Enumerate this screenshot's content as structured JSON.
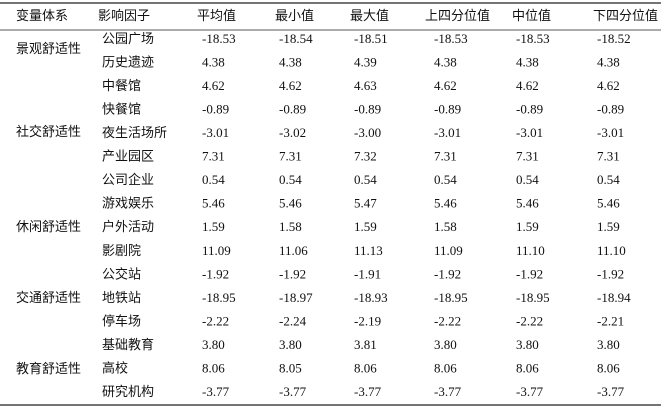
{
  "table": {
    "header": [
      "变量体系",
      "影响因子",
      "平均值",
      "最小值",
      "最大值",
      "上四分位值",
      "中位值",
      "下四分位值"
    ],
    "groups": [
      "景观舒适性",
      "社交舒适性",
      "休闲舒适性",
      "交通舒适性",
      "教育舒适性"
    ],
    "rows": [
      [
        "公园广场",
        "-18.53",
        "-18.54",
        "-18.51",
        "-18.53",
        "-18.53",
        "-18.52"
      ],
      [
        "历史遗迹",
        "4.38",
        "4.38",
        "4.39",
        "4.38",
        "4.38",
        "4.38"
      ],
      [
        "中餐馆",
        "4.62",
        "4.62",
        "4.63",
        "4.62",
        "4.62",
        "4.62"
      ],
      [
        "快餐馆",
        "-0.89",
        "-0.89",
        "-0.89",
        "-0.89",
        "-0.89",
        "-0.89"
      ],
      [
        "夜生活场所",
        "-3.01",
        "-3.02",
        "-3.00",
        "-3.01",
        "-3.01",
        "-3.01"
      ],
      [
        "产业园区",
        "7.31",
        "7.31",
        "7.32",
        "7.31",
        "7.31",
        "7.31"
      ],
      [
        "公司企业",
        "0.54",
        "0.54",
        "0.54",
        "0.54",
        "0.54",
        "0.54"
      ],
      [
        "游戏娱乐",
        "5.46",
        "5.46",
        "5.47",
        "5.46",
        "5.46",
        "5.46"
      ],
      [
        "户外活动",
        "1.59",
        "1.58",
        "1.59",
        "1.58",
        "1.59",
        "1.59"
      ],
      [
        "影剧院",
        "11.09",
        "11.06",
        "11.13",
        "11.09",
        "11.10",
        "11.10"
      ],
      [
        "公交站",
        "-1.92",
        "-1.92",
        "-1.91",
        "-1.92",
        "-1.92",
        "-1.92"
      ],
      [
        "地铁站",
        "-18.95",
        "-18.97",
        "-18.93",
        "-18.95",
        "-18.95",
        "-18.94"
      ],
      [
        "停车场",
        "-2.22",
        "-2.24",
        "-2.19",
        "-2.22",
        "-2.22",
        "-2.21"
      ],
      [
        "基础教育",
        "3.80",
        "3.80",
        "3.81",
        "3.80",
        "3.80",
        "3.80"
      ],
      [
        "高校",
        "8.06",
        "8.05",
        "8.06",
        "8.06",
        "8.06",
        "8.06"
      ],
      [
        "研究机构",
        "-3.77",
        "-3.77",
        "-3.77",
        "-3.77",
        "-3.77",
        "-3.77"
      ]
    ]
  }
}
